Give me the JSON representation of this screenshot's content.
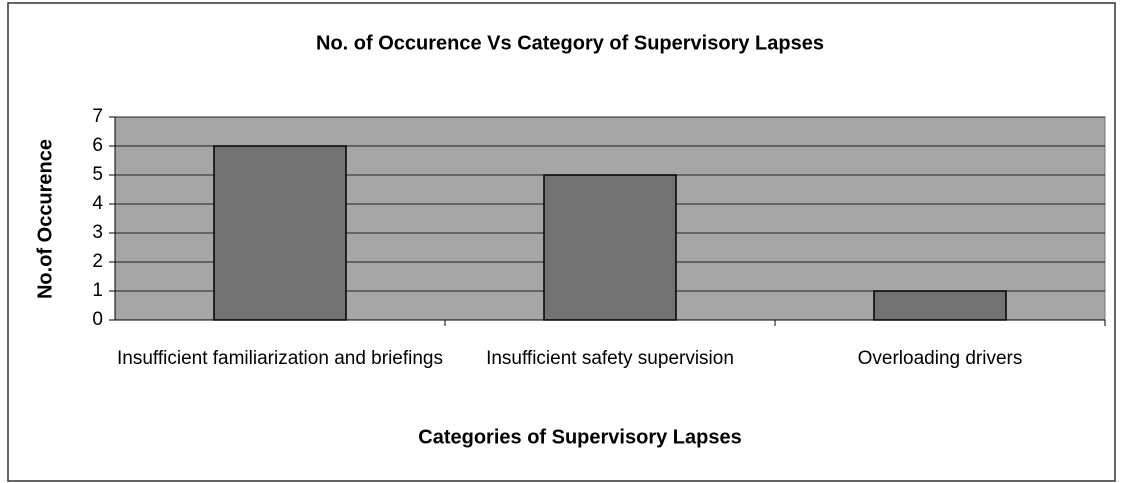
{
  "chart_data": {
    "type": "bar",
    "title": "No. of Occurence Vs Category of Supervisory Lapses",
    "x_label": "Categories of Supervisory Lapses",
    "y_label": "No.of Occurence",
    "categories": [
      "Insufficient familiarization and briefings",
      "Insufficient safety supervision",
      "Overloading drivers"
    ],
    "values": [
      6,
      5,
      1
    ],
    "color": "#727272",
    "ylim": [
      0,
      7
    ],
    "yticks": [
      0,
      1,
      2,
      3,
      4,
      5,
      6,
      7
    ],
    "grid": true
  }
}
